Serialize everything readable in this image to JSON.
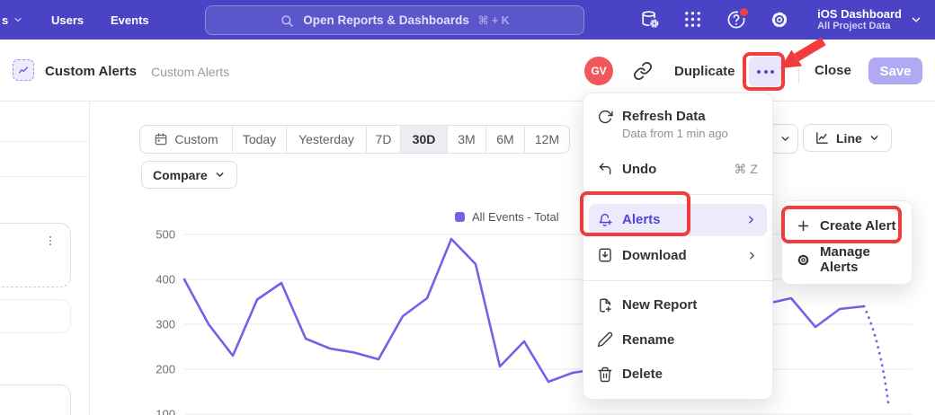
{
  "navbar": {
    "nav_items": [
      {
        "label": "s"
      },
      {
        "label": "Users"
      },
      {
        "label": "Events"
      }
    ],
    "search": {
      "placeholder": "Open Reports & Dashboards",
      "shortcut": "⌘ + K"
    },
    "project": {
      "name": "iOS Dashboard",
      "scope": "All Project Data"
    }
  },
  "header": {
    "title": "Custom Alerts",
    "breadcrumb": "Custom Alerts",
    "avatar_initials": "GV",
    "duplicate_label": "Duplicate",
    "close_label": "Close",
    "save_label": "Save"
  },
  "toolbar": {
    "date_ranges": [
      "Custom",
      "Today",
      "Yesterday",
      "7D",
      "30D",
      "3M",
      "6M",
      "12M"
    ],
    "selected_range": "30D",
    "compare_label": "Compare",
    "chart_type_label": "Line"
  },
  "menu": {
    "items": [
      {
        "label": "Refresh Data",
        "sublabel": "Data from 1 min ago"
      },
      {
        "label": "Undo",
        "shortcut": "⌘ Z"
      },
      {
        "label": "Alerts",
        "highlighted": true,
        "has_submenu": true
      },
      {
        "label": "Download",
        "has_submenu": true
      },
      {
        "label": "New Report"
      },
      {
        "label": "Rename"
      },
      {
        "label": "Delete"
      }
    ]
  },
  "submenu": {
    "items": [
      {
        "label": "Create Alert"
      },
      {
        "label": "Manage Alerts"
      }
    ]
  },
  "chart_data": {
    "type": "line",
    "title": "",
    "legend_position": "top-right",
    "grid": "horizontal",
    "y_ticks": [
      100,
      200,
      300,
      400,
      500
    ],
    "ylim": [
      100,
      500
    ],
    "x_points": 30,
    "incomplete_tail": true,
    "series": [
      {
        "name": "All Events - Total",
        "color": "#7163e8",
        "values": [
          400,
          300,
          230,
          355,
          392,
          268,
          246,
          237,
          222,
          318,
          358,
          490,
          434,
          206,
          262,
          172,
          192,
          200,
          215,
          240,
          268,
          295,
          320,
          338,
          346,
          358,
          294,
          334,
          340,
          125
        ]
      }
    ]
  },
  "colors": {
    "navbar": "#4a43c6",
    "accent": "#5246d9",
    "line": "#7163e8",
    "annotation_red": "#f23c3c",
    "avatar": "#f2575c",
    "save_disabled": "#b1aaf2",
    "highlight_row": "#edeafb"
  }
}
